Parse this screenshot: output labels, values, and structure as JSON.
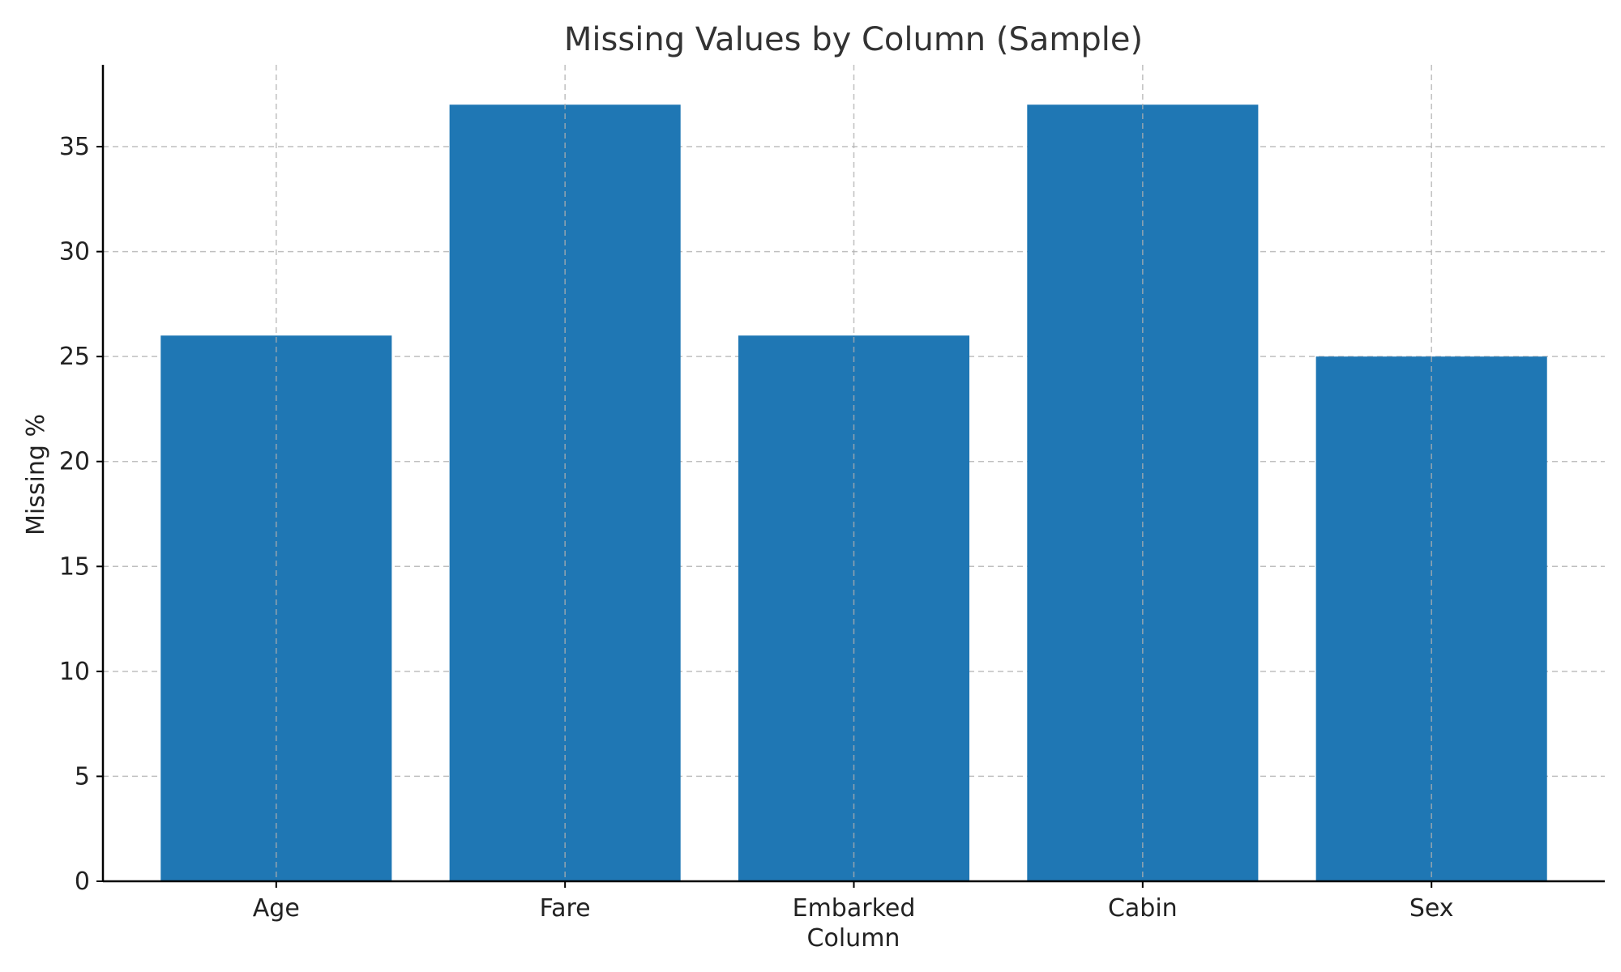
{
  "chart_data": {
    "type": "bar",
    "title": "Missing Values by Column (Sample)",
    "xlabel": "Column",
    "ylabel": "Missing %",
    "categories": [
      "Age",
      "Fare",
      "Embarked",
      "Cabin",
      "Sex"
    ],
    "values": [
      26,
      37,
      26,
      37,
      25
    ],
    "ylim": [
      0,
      38.9
    ],
    "yticks": [
      0,
      5,
      10,
      15,
      20,
      25,
      30,
      35
    ],
    "grid": true,
    "bar_color": "#1f77b4"
  }
}
